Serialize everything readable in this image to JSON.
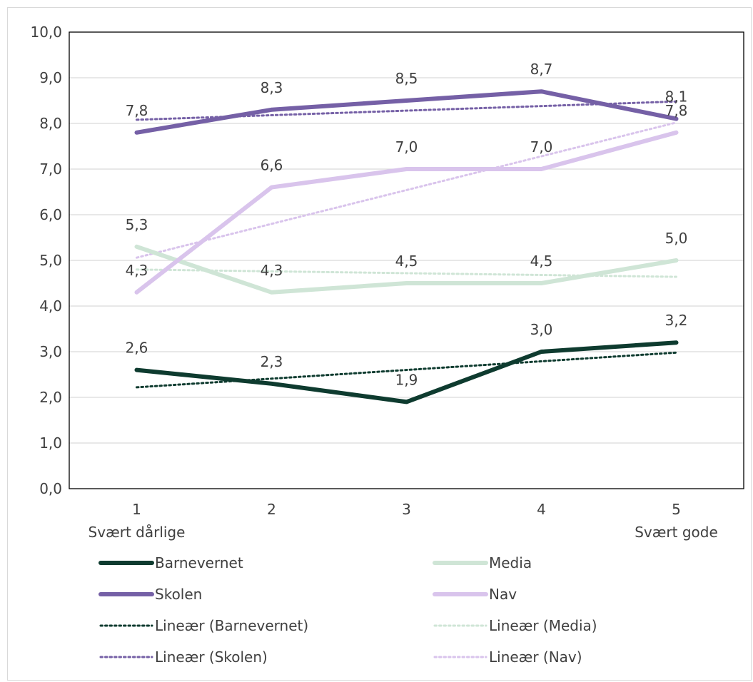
{
  "chart_data": {
    "type": "line",
    "title": "",
    "xlabel": "",
    "ylabel": "",
    "x_ticks": [
      "1",
      "2",
      "3",
      "4",
      "5"
    ],
    "x_sublabels": [
      {
        "text": "Svært dårlige",
        "align": "left"
      },
      {
        "text": "Svært gode",
        "align": "right"
      }
    ],
    "ylim": [
      0,
      10
    ],
    "y_ticks": [
      "0,0",
      "1,0",
      "2,0",
      "3,0",
      "4,0",
      "5,0",
      "6,0",
      "7,0",
      "8,0",
      "9,0",
      "10,0"
    ],
    "grid": true,
    "legend_position": "bottom",
    "series": [
      {
        "name": "Barnevernet",
        "values": [
          2.6,
          2.3,
          1.9,
          3.0,
          3.2
        ],
        "labels": [
          "2,6",
          "2,3",
          "1,9",
          "3,0",
          "3,2"
        ],
        "color": "#0e3b2f"
      },
      {
        "name": "Media",
        "values": [
          5.3,
          4.3,
          4.5,
          4.5,
          5.0
        ],
        "labels": [
          "5,3",
          "4,3",
          "4,5",
          "4,5",
          "5,0"
        ],
        "color": "#cfe5d6"
      },
      {
        "name": "Skolen",
        "values": [
          7.8,
          8.3,
          8.5,
          8.7,
          8.1
        ],
        "labels": [
          "7,8",
          "8,3",
          "8,5",
          "8,7",
          "8,1"
        ],
        "color": "#7560a6"
      },
      {
        "name": "Nav",
        "values": [
          4.3,
          6.6,
          7.0,
          7.0,
          7.8
        ],
        "labels": [
          "4,3",
          "6,6",
          "7,0",
          "7,0",
          "7,8"
        ],
        "color": "#d9c4ec"
      }
    ],
    "trendlines": [
      {
        "name": "Lineær (Barnevernet)",
        "series": "Barnevernet"
      },
      {
        "name": "Lineær (Media)",
        "series": "Media"
      },
      {
        "name": "Lineær (Skolen)",
        "series": "Skolen"
      },
      {
        "name": "Lineær (Nav)",
        "series": "Nav"
      }
    ]
  }
}
